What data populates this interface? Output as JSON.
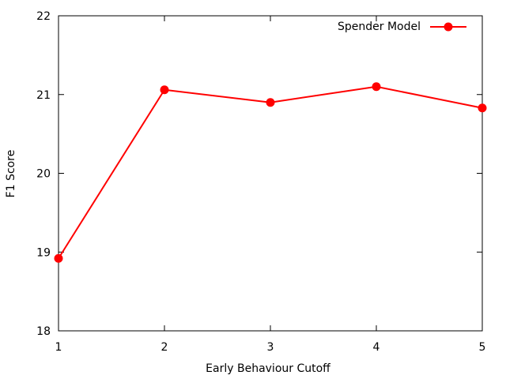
{
  "chart_data": {
    "type": "line",
    "title": "",
    "xlabel": "Early Behaviour Cutoff",
    "ylabel": "F1 Score",
    "x": [
      1,
      2,
      3,
      4,
      5
    ],
    "xlim": [
      1,
      5
    ],
    "ylim": [
      18,
      22
    ],
    "xticks": [
      1,
      2,
      3,
      4,
      5
    ],
    "yticks": [
      18,
      19,
      20,
      21,
      22
    ],
    "grid": false,
    "legend_position": "top-right",
    "series": [
      {
        "name": "Spender Model",
        "values": [
          18.92,
          21.06,
          20.9,
          21.1,
          20.83
        ],
        "color": "#ff0000",
        "marker": "circle"
      }
    ]
  }
}
